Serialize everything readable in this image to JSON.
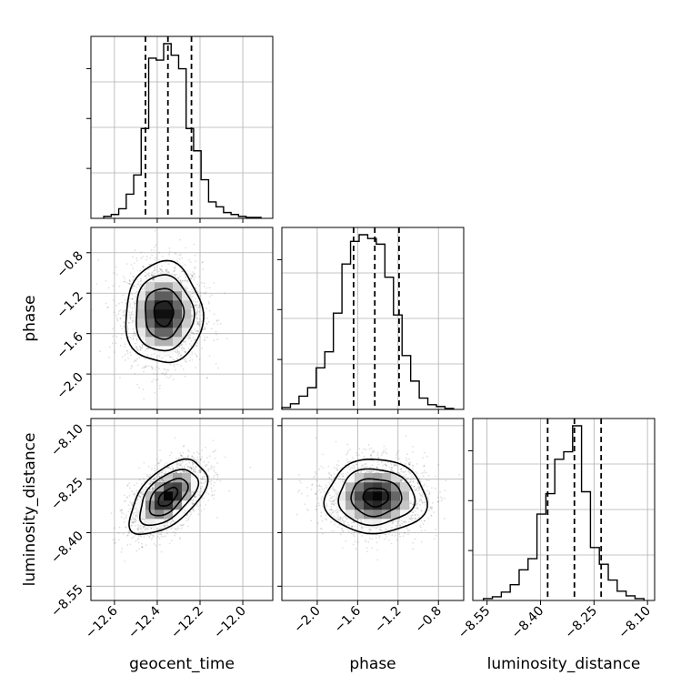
{
  "chart_data": {
    "type": "corner",
    "parameters": [
      "geocent_time",
      "phase",
      "luminosity_distance"
    ],
    "axis_labels": {
      "x": [
        "geocent_time",
        "phase",
        "luminosity_distance"
      ],
      "y_rows": [
        "",
        "phase",
        "luminosity_distance"
      ]
    },
    "ranges": [
      [
        -12.71,
        -11.86
      ],
      [
        -2.35,
        -0.55
      ],
      [
        -8.59,
        -8.08
      ]
    ],
    "ticks": [
      {
        "values": [
          -12.6,
          -12.4,
          -12.2,
          -12.0
        ],
        "labels": [
          "−12.6",
          "−12.4",
          "−12.2",
          "−12.0"
        ]
      },
      {
        "values": [
          -2.0,
          -1.6,
          -1.2,
          -0.8
        ],
        "labels": [
          "−2.0",
          "−1.6",
          "−1.2",
          "−0.8"
        ]
      },
      {
        "values": [
          -8.55,
          -8.4,
          -8.25,
          -8.1
        ],
        "labels": [
          "−8.55",
          "−8.40",
          "−8.25",
          "−8.10"
        ]
      }
    ],
    "grid": true,
    "histograms": [
      {
        "parameter": "geocent_time",
        "bin_edges": [
          -12.65,
          -12.615,
          -12.58,
          -12.545,
          -12.51,
          -12.475,
          -12.44,
          -12.405,
          -12.37,
          -12.335,
          -12.3,
          -12.265,
          -12.23,
          -12.195,
          -12.16,
          -12.125,
          -12.09,
          -12.055,
          -12.02,
          -11.985,
          -11.95,
          -11.915
        ],
        "counts": [
          2,
          4,
          10,
          25,
          45,
          93,
          166,
          164,
          181,
          169,
          155,
          93,
          70,
          40,
          17,
          12,
          6,
          4,
          2,
          1,
          1
        ],
        "quantiles": [
          -12.455,
          -12.35,
          -12.24
        ]
      },
      {
        "parameter": "phase",
        "bin_edges": [
          -2.35,
          -2.265,
          -2.18,
          -2.095,
          -2.01,
          -1.925,
          -1.84,
          -1.755,
          -1.67,
          -1.585,
          -1.5,
          -1.415,
          -1.33,
          -1.245,
          -1.16,
          -1.075,
          -0.99,
          -0.905,
          -0.82,
          -0.735,
          -0.65
        ],
        "counts": [
          2,
          6,
          14,
          23,
          44,
          61,
          102,
          154,
          178,
          185,
          181,
          175,
          140,
          100,
          57,
          30,
          12,
          5,
          3,
          1
        ],
        "quantiles": [
          -1.64,
          -1.43,
          -1.19
        ]
      },
      {
        "parameter": "luminosity_distance",
        "bin_edges": [
          -8.56,
          -8.535,
          -8.51,
          -8.485,
          -8.46,
          -8.435,
          -8.41,
          -8.385,
          -8.36,
          -8.335,
          -8.31,
          -8.285,
          -8.26,
          -8.235,
          -8.21,
          -8.185,
          -8.16,
          -8.135,
          -8.11
        ],
        "counts": [
          2,
          4,
          9,
          17,
          33,
          45,
          93,
          115,
          152,
          160,
          188,
          117,
          57,
          39,
          22,
          10,
          5,
          2
        ],
        "quantiles": [
          -8.38,
          -8.305,
          -8.23
        ]
      }
    ],
    "pairs": [
      {
        "x_param": "geocent_time",
        "y_param": "phase",
        "center": [
          -12.37,
          -1.4
        ],
        "sigma": [
          0.09,
          0.25
        ],
        "correlation": 0.0
      },
      {
        "x_param": "geocent_time",
        "y_param": "luminosity_distance",
        "center": [
          -12.35,
          -8.3
        ],
        "sigma": [
          0.09,
          0.052
        ],
        "correlation": 0.55
      },
      {
        "x_param": "phase",
        "y_param": "luminosity_distance",
        "center": [
          -1.42,
          -8.3
        ],
        "sigma": [
          0.25,
          0.052
        ],
        "correlation": 0.0
      }
    ],
    "contour_levels_sigma": [
      0.5,
      1.0,
      1.5,
      2.0
    ]
  }
}
